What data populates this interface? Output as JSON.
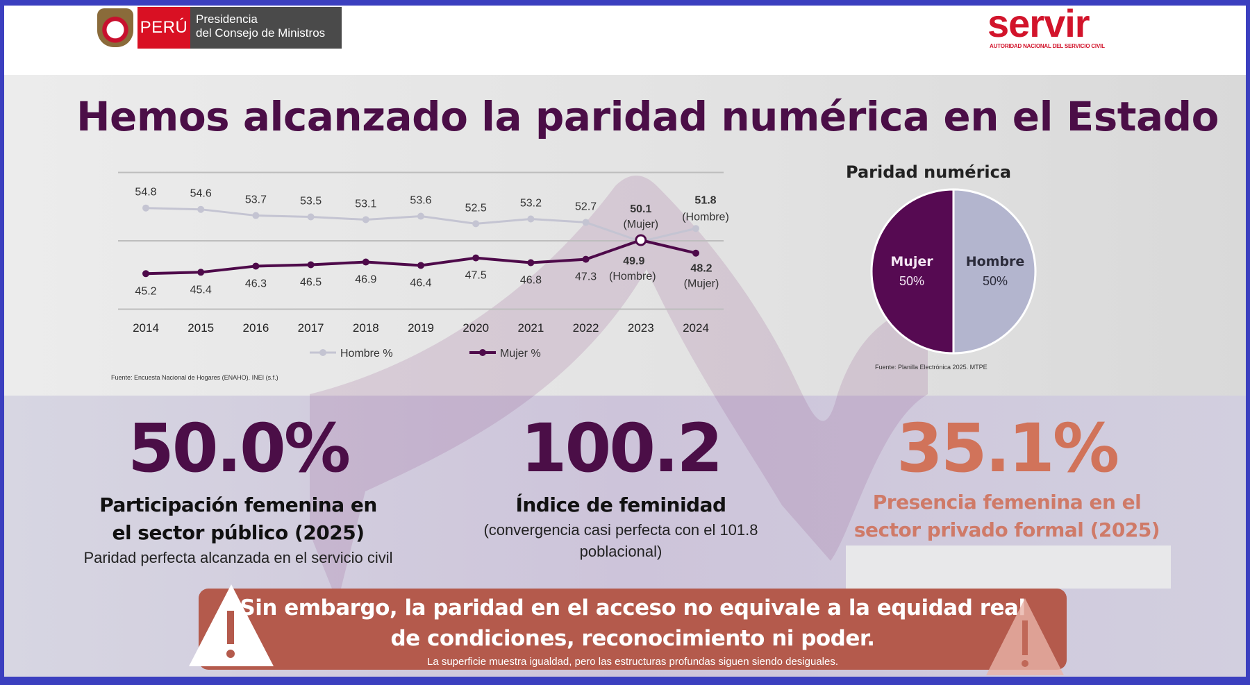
{
  "header": {
    "peru_logo": {
      "country": "PERÚ",
      "line1": "Presidencia",
      "line2": "del Consejo de Ministros"
    },
    "servir_logo": {
      "name": "servir",
      "subtitle": "AUTORIDAD NACIONAL DEL SERVICIO CIVIL"
    }
  },
  "title": "Hemos alcanzado la paridad numérica en el Estado",
  "chart_data": [
    {
      "type": "line",
      "x": [
        "2014",
        "2015",
        "2016",
        "2017",
        "2018",
        "2019",
        "2020",
        "2021",
        "2022",
        "2023",
        "2024"
      ],
      "series": [
        {
          "name": "Hombre %",
          "color": "#c4c4d2",
          "values": [
            54.8,
            54.6,
            53.7,
            53.5,
            53.1,
            53.6,
            52.5,
            53.2,
            52.7,
            49.9,
            51.8
          ]
        },
        {
          "name": "Mujer %",
          "color": "#4e0a4a",
          "values": [
            45.2,
            45.4,
            46.3,
            46.5,
            46.9,
            46.4,
            47.5,
            46.8,
            47.3,
            50.1,
            48.2
          ]
        }
      ],
      "annotations": {
        "2023_mujer": "(Mujer)",
        "2023_hombre": "(Hombre)",
        "2024_hombre": "(Hombre)",
        "2024_mujer": "(Mujer)"
      },
      "ylim": [
        40,
        60
      ],
      "grid": true,
      "legend": "bottom",
      "source": "Fuente: Encuesta Nacional de Hogares (ENAHO). INEI (s.f.)"
    },
    {
      "type": "pie",
      "title": "Paridad numérica",
      "slices": [
        {
          "label": "Mujer",
          "value": 50,
          "display": "50%",
          "color": "#560a52"
        },
        {
          "label": "Hombre",
          "value": 50,
          "display": "50%",
          "color": "#b3b5ce"
        }
      ],
      "source": "Fuente: Planilla Electrónica 2025. MTPE"
    }
  ],
  "stats": [
    {
      "value": "50.0%",
      "heading": "Participación femenina en el sector público (2025)",
      "note": "Paridad perfecta alcanzada en el servicio civil",
      "color": "#4b0e47"
    },
    {
      "value": "100.2",
      "heading": "Índice de feminidad",
      "note": "(convergencia casi perfecta con el 101.8 poblacional)",
      "color": "#4b0e47"
    },
    {
      "value": "35.1%",
      "heading": "Presencia femenina en el sector privado formal (2025)",
      "note": "",
      "color": "#d1735a"
    }
  ],
  "banner": {
    "line1": "Sin embargo, la paridad en el acceso no equivale a la equidad real",
    "line2": "de condiciones, reconocimiento ni poder.",
    "line3": "La superficie muestra igualdad, pero las estructuras profundas siguen siendo desiguales.",
    "color": "#b45a4c"
  }
}
